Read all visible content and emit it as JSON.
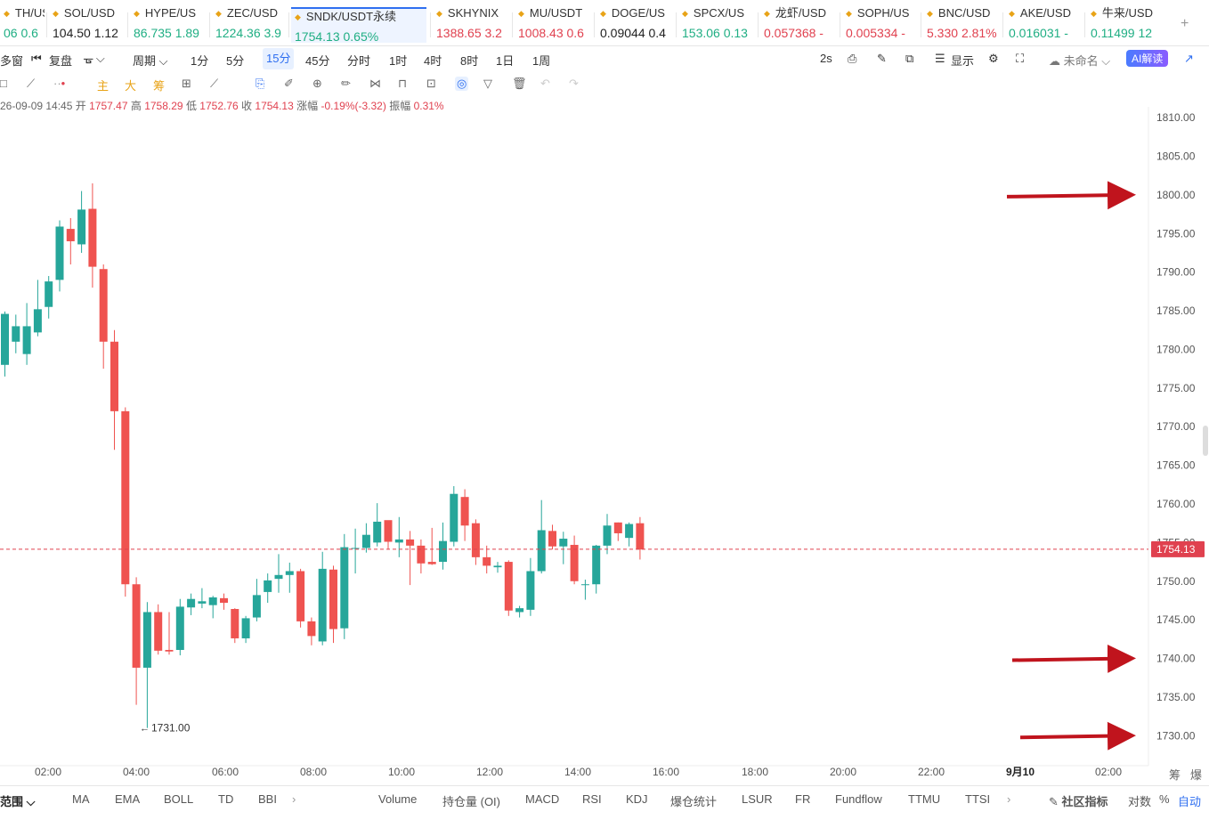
{
  "tickers": [
    {
      "symbol": "TH/USD",
      "price": "06",
      "change": "0.6",
      "dir": "up",
      "selected": false
    },
    {
      "symbol": "SOL/USD",
      "price": "104.50",
      "change": "1.12",
      "dir": "nt",
      "selected": false
    },
    {
      "symbol": "HYPE/US",
      "price": "86.735",
      "change": "1.89",
      "dir": "up",
      "selected": false
    },
    {
      "symbol": "ZEC/USD",
      "price": "1224.36",
      "change": "3.9",
      "dir": "up",
      "selected": false
    },
    {
      "symbol": "SNDK/USDT永续",
      "price": "1754.13",
      "change": "0.65%",
      "dir": "up",
      "selected": true
    },
    {
      "symbol": "SKHYNIX",
      "price": "1388.65",
      "change": "3.2",
      "dir": "dn",
      "selected": false
    },
    {
      "symbol": "MU/USDT",
      "price": "1008.43",
      "change": "0.6",
      "dir": "dn",
      "selected": false
    },
    {
      "symbol": "DOGE/US",
      "price": "0.09044",
      "change": "0.4",
      "dir": "nt",
      "selected": false
    },
    {
      "symbol": "SPCX/US",
      "price": "153.06",
      "change": "0.13",
      "dir": "up",
      "selected": false
    },
    {
      "symbol": "龙虾/USD",
      "price": "0.057368",
      "change": "-",
      "dir": "dn",
      "selected": false
    },
    {
      "symbol": "SOPH/US",
      "price": "0.005334",
      "change": "-",
      "dir": "dn",
      "selected": false
    },
    {
      "symbol": "BNC/USD",
      "price": "5.330",
      "change": "2.81%",
      "dir": "dn",
      "selected": false
    },
    {
      "symbol": "AKE/USD",
      "price": "0.016031",
      "change": "-",
      "dir": "up",
      "selected": false
    },
    {
      "symbol": "牛来/USD",
      "price": "0.11499",
      "change": "12",
      "dir": "up",
      "selected": false
    }
  ],
  "periodbar": {
    "multi_window": "多窗",
    "replay": "复盘",
    "period": "周期",
    "periods": [
      "1分",
      "5分",
      "15分",
      "45分",
      "分时",
      "1时",
      "4时",
      "8时",
      "1日",
      "1周"
    ],
    "active_period": "15分",
    "refresh": "2s",
    "display": "显示",
    "unnamed": "未命名",
    "ai": "AI解读"
  },
  "toolbar": {
    "main": "主",
    "big": "大",
    "chip": "筹"
  },
  "ohlc": {
    "datetime": "26-09-09 14:45",
    "open_label": "开",
    "open": "1757.47",
    "high_label": "高",
    "high": "1758.29",
    "low_label": "低",
    "low": "1752.76",
    "close_label": "收",
    "close": "1754.13",
    "change_label": "涨幅",
    "change": "-0.19%(-3.32)",
    "amp_label": "振幅",
    "amp": "0.31%"
  },
  "chart_data": {
    "type": "candlestick",
    "y_ticks": [
      "1810.00",
      "1805.00",
      "1800.00",
      "1795.00",
      "1790.00",
      "1785.00",
      "1780.00",
      "1775.00",
      "1770.00",
      "1765.00",
      "1760.00",
      "1755.00",
      "1750.00",
      "1745.00",
      "1740.00",
      "1735.00",
      "1730.00"
    ],
    "ylim": [
      1726.5,
      1812
    ],
    "x_ticks": [
      "02:00",
      "04:00",
      "06:00",
      "08:00",
      "10:00",
      "12:00",
      "14:00",
      "16:00",
      "18:00",
      "20:00",
      "22:00",
      "9月10",
      "02:00"
    ],
    "last_price": "1754.13",
    "low_marker": "1731.00",
    "candles": [
      [
        1778.0,
        1784.6,
        1776.5,
        1784.9
      ],
      [
        1781.0,
        1783.0,
        1779.5,
        1784.5
      ],
      [
        1779.4,
        1783.0,
        1778.0,
        1786.0
      ],
      [
        1782.2,
        1785.2,
        1781.7,
        1789.0
      ],
      [
        1785.5,
        1788.8,
        1784.0,
        1789.5
      ],
      [
        1789.0,
        1795.9,
        1787.5,
        1796.7
      ],
      [
        1795.6,
        1794.0,
        1791.0,
        1797.0
      ],
      [
        1793.6,
        1798.1,
        1792.5,
        1800.5
      ],
      [
        1798.2,
        1790.7,
        1788.0,
        1801.5
      ],
      [
        1790.4,
        1781.0,
        1777.5,
        1791.0
      ],
      [
        1781.0,
        1772.0,
        1767.0,
        1782.5
      ],
      [
        1772.0,
        1749.6,
        1748.0,
        1772.5
      ],
      [
        1749.6,
        1738.8,
        1734.0,
        1750.5
      ],
      [
        1738.8,
        1746.0,
        1731.0,
        1747.3
      ],
      [
        1746.0,
        1741.0,
        1740.5,
        1747.0
      ],
      [
        1741.1,
        1740.9,
        1740.5,
        1746.0
      ],
      [
        1741.1,
        1746.7,
        1740.4,
        1747.7
      ],
      [
        1746.6,
        1747.7,
        1745.6,
        1748.4
      ],
      [
        1747.1,
        1747.4,
        1746.5,
        1749.1
      ],
      [
        1746.9,
        1747.9,
        1745.2,
        1748.1
      ],
      [
        1747.8,
        1747.2,
        1746.3,
        1748.4
      ],
      [
        1746.4,
        1742.6,
        1742.0,
        1746.5
      ],
      [
        1742.6,
        1745.2,
        1742.0,
        1745.5
      ],
      [
        1745.3,
        1748.2,
        1744.8,
        1750.3
      ],
      [
        1748.6,
        1750.1,
        1747.2,
        1751.0
      ],
      [
        1750.3,
        1750.8,
        1748.5,
        1753.5
      ],
      [
        1750.8,
        1751.3,
        1748.5,
        1752.4
      ],
      [
        1751.3,
        1744.8,
        1744.0,
        1751.6
      ],
      [
        1744.8,
        1742.9,
        1741.7,
        1745.3
      ],
      [
        1742.2,
        1751.6,
        1741.7,
        1753.8
      ],
      [
        1751.5,
        1743.8,
        1742.0,
        1752.0
      ],
      [
        1743.9,
        1754.4,
        1742.5,
        1756.1
      ],
      [
        1754.2,
        1754.3,
        1751.0,
        1756.8
      ],
      [
        1754.3,
        1756.0,
        1753.7,
        1757.5
      ],
      [
        1755.0,
        1757.7,
        1754.5,
        1760.1
      ],
      [
        1757.9,
        1755.1,
        1754.1,
        1757.3
      ],
      [
        1755.0,
        1755.4,
        1753.1,
        1758.3
      ],
      [
        1755.4,
        1754.6,
        1749.5,
        1756.5
      ],
      [
        1754.6,
        1752.3,
        1751.0,
        1755.4
      ],
      [
        1752.5,
        1752.2,
        1752.1,
        1756.9
      ],
      [
        1752.5,
        1755.2,
        1751.5,
        1757.6
      ],
      [
        1755.1,
        1761.3,
        1754.5,
        1762.3
      ],
      [
        1760.9,
        1757.2,
        1755.2,
        1761.9
      ],
      [
        1757.5,
        1753.1,
        1752.1,
        1758.0
      ],
      [
        1753.1,
        1752.0,
        1751.0,
        1754.6
      ],
      [
        1751.8,
        1752.0,
        1751.1,
        1752.5
      ],
      [
        1752.5,
        1746.2,
        1745.5,
        1752.7
      ],
      [
        1746.0,
        1746.5,
        1745.3,
        1746.8
      ],
      [
        1746.3,
        1751.3,
        1745.5,
        1753.0
      ],
      [
        1751.3,
        1756.6,
        1751.0,
        1760.5
      ],
      [
        1756.5,
        1754.5,
        1754.1,
        1757.3
      ],
      [
        1754.5,
        1755.5,
        1752.2,
        1756.4
      ],
      [
        1754.7,
        1750.0,
        1749.6,
        1755.9
      ],
      [
        1749.6,
        1749.6,
        1747.6,
        1750.2
      ],
      [
        1749.6,
        1754.6,
        1748.4,
        1754.7
      ],
      [
        1754.6,
        1757.2,
        1753.5,
        1758.7
      ],
      [
        1757.6,
        1756.2,
        1755.2,
        1757.6
      ],
      [
        1755.6,
        1757.4,
        1754.5,
        1757.6
      ],
      [
        1757.5,
        1754.1,
        1752.8,
        1758.3
      ]
    ]
  },
  "annotations": {
    "arrow_color": "#c0141d",
    "arrows": [
      "1800.00",
      "1740.00",
      "1730.00"
    ]
  },
  "corner_labels": {
    "chip": "筹",
    "burst": "爆"
  },
  "bottombar": {
    "range": "范围",
    "indicators": [
      "MA",
      "EMA",
      "BOLL",
      "TD",
      "BBI"
    ],
    "sub_indicators": [
      "Volume",
      "持仓量 (OI)",
      "MACD",
      "RSI",
      "KDJ",
      "爆仓统计",
      "LSUR",
      "FR",
      "Fundflow",
      "TTMU",
      "TTSI"
    ],
    "community": "社区指标",
    "log": "对数",
    "percent": "%",
    "auto": "自动"
  },
  "colors": {
    "up": "#26a69a",
    "down": "#ef5350",
    "accent": "#2f6ff0",
    "price_tag": "#e0414f"
  }
}
